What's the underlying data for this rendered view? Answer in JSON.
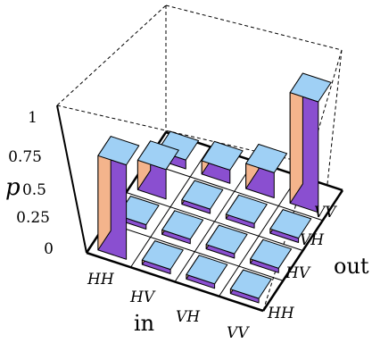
{
  "chart_data": {
    "type": "bar3d",
    "z_label": "p",
    "x_label": "in",
    "y_label": "out",
    "z_ticks": [
      "0",
      "0.25",
      "0.5",
      "0.75",
      "1"
    ],
    "zlim": [
      0,
      1
    ],
    "in_categories": [
      "HH",
      "HV",
      "VH",
      "VV"
    ],
    "out_categories": [
      "HH",
      "HV",
      "VH",
      "VV"
    ],
    "values": [
      [
        0.64,
        0.01,
        0.0,
        0.0
      ],
      [
        0.02,
        0.0,
        0.0,
        0.0
      ],
      [
        0.2,
        0.0,
        0.0,
        0.0
      ],
      [
        0.06,
        0.09,
        0.17,
        0.75
      ]
    ],
    "values_missing_note": "",
    "bar_colors": {
      "front": "#8a4fd0",
      "side": "#f4b48c",
      "top": "#9fd0f5"
    },
    "grid": true
  }
}
